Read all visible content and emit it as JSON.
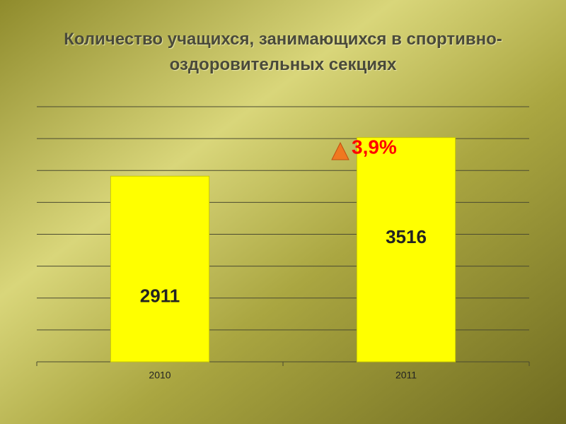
{
  "chart_data": {
    "type": "bar",
    "title": "Количество учащихся, занимающихся в спортивно-оздоровительных секциях",
    "categories": [
      "2010",
      "2011"
    ],
    "values": [
      2911,
      3516
    ],
    "color": "#ffff00",
    "ylim": [
      0,
      4000
    ],
    "yticks": [
      0,
      500,
      1000,
      1500,
      2000,
      2500,
      3000,
      3500,
      4000
    ],
    "grid": true,
    "annotation": "3,9%"
  }
}
